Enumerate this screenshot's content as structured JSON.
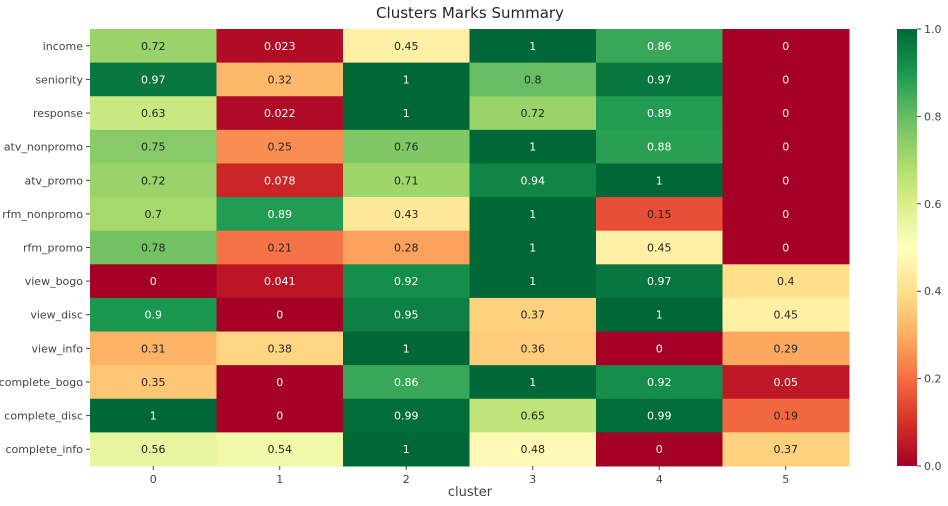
{
  "chart_data": {
    "type": "heatmap",
    "title": "Clusters Marks Summary",
    "xlabel": "cluster",
    "ylabel": "",
    "x_categories": [
      "0",
      "1",
      "2",
      "3",
      "4",
      "5"
    ],
    "y_categories": [
      "income",
      "seniority",
      "response",
      "atv_nonpromo",
      "atv_promo",
      "rfm_nonpromo",
      "rfm_promo",
      "view_bogo",
      "view_disc",
      "view_info",
      "complete_bogo",
      "complete_disc",
      "complete_info"
    ],
    "values": [
      [
        0.72,
        0.023,
        0.45,
        1,
        0.86,
        0
      ],
      [
        0.97,
        0.32,
        1,
        0.8,
        0.97,
        0
      ],
      [
        0.63,
        0.022,
        1,
        0.72,
        0.89,
        0
      ],
      [
        0.75,
        0.25,
        0.76,
        1,
        0.88,
        0
      ],
      [
        0.72,
        0.078,
        0.71,
        0.94,
        1,
        0
      ],
      [
        0.7,
        0.89,
        0.43,
        1,
        0.15,
        0
      ],
      [
        0.78,
        0.21,
        0.28,
        1,
        0.45,
        0
      ],
      [
        0,
        0.041,
        0.92,
        1,
        0.97,
        0.4
      ],
      [
        0.9,
        0,
        0.95,
        0.37,
        1,
        0.45
      ],
      [
        0.31,
        0.38,
        1,
        0.36,
        0,
        0.29
      ],
      [
        0.35,
        0,
        0.86,
        1,
        0.92,
        0.05
      ],
      [
        1,
        0,
        0.99,
        0.65,
        0.99,
        0.19
      ],
      [
        0.56,
        0.54,
        1,
        0.48,
        0,
        0.37
      ]
    ],
    "labels": [
      [
        "0.72",
        "0.023",
        "0.45",
        "1",
        "0.86",
        "0"
      ],
      [
        "0.97",
        "0.32",
        "1",
        "0.8",
        "0.97",
        "0"
      ],
      [
        "0.63",
        "0.022",
        "1",
        "0.72",
        "0.89",
        "0"
      ],
      [
        "0.75",
        "0.25",
        "0.76",
        "1",
        "0.88",
        "0"
      ],
      [
        "0.72",
        "0.078",
        "0.71",
        "0.94",
        "1",
        "0"
      ],
      [
        "0.7",
        "0.89",
        "0.43",
        "1",
        "0.15",
        "0"
      ],
      [
        "0.78",
        "0.21",
        "0.28",
        "1",
        "0.45",
        "0"
      ],
      [
        "0",
        "0.041",
        "0.92",
        "1",
        "0.97",
        "0.4"
      ],
      [
        "0.9",
        "0",
        "0.95",
        "0.37",
        "1",
        "0.45"
      ],
      [
        "0.31",
        "0.38",
        "1",
        "0.36",
        "0",
        "0.29"
      ],
      [
        "0.35",
        "0",
        "0.86",
        "1",
        "0.92",
        "0.05"
      ],
      [
        "1",
        "0",
        "0.99",
        "0.65",
        "0.99",
        "0.19"
      ],
      [
        "0.56",
        "0.54",
        "1",
        "0.48",
        "0",
        "0.37"
      ]
    ],
    "colormap": "RdYlGn",
    "vmin": 0,
    "vmax": 1,
    "colorbar_ticks": [
      "0.0",
      "0.2",
      "0.4",
      "0.6",
      "0.8",
      "1.0"
    ],
    "annotation_color": "#262626",
    "text_color": "#444444"
  }
}
